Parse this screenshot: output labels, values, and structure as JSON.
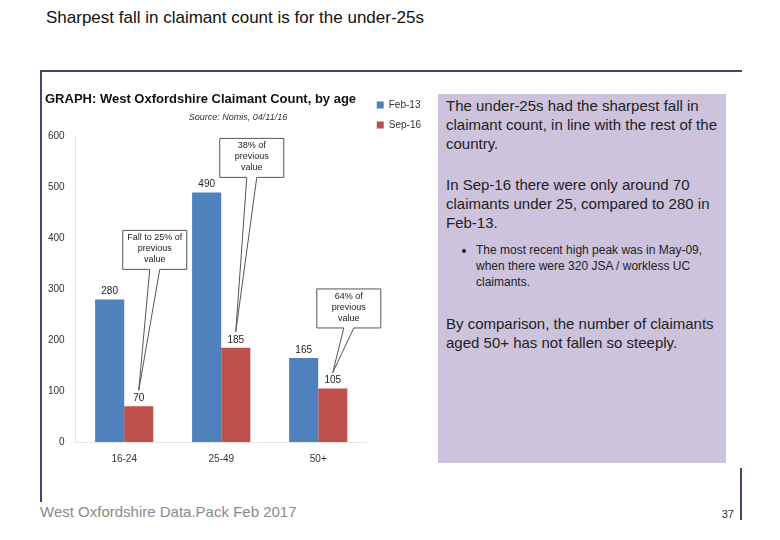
{
  "slide": {
    "title": "Sharpest fall in claimant count is for the under-25s",
    "panel": {
      "paragraphs": [
        "The under-25s had the sharpest fall in claimant count, in line with the rest of the country.",
        "In Sep-16 there were only around 70 claimants under 25, compared to 280 in Feb-13."
      ],
      "bullets": [
        "The most recent high peak was in May-09, when there were 320 JSA / workless UC claimants."
      ],
      "closing": "By comparison, the number of claimants aged 50+ has not fallen so steeply."
    },
    "footer": "West Oxfordshire Data.Pack Feb 2017",
    "page": 37
  },
  "chart_data": {
    "type": "bar",
    "title": "GRAPH: West Oxfordshire Claimant Count, by age",
    "subtitle": "Source: Nomis, 04/11/16",
    "categories": [
      "16-24",
      "25-49",
      "50+"
    ],
    "series": [
      {
        "name": "Feb-13",
        "color": "#4f81bd",
        "values": [
          280,
          490,
          165
        ]
      },
      {
        "name": "Sep-16",
        "color": "#c0504d",
        "values": [
          70,
          185,
          105
        ]
      }
    ],
    "ylim": [
      0,
      600
    ],
    "yticks": [
      0,
      100,
      200,
      300,
      400,
      500,
      600
    ],
    "grid": false,
    "legend": "right",
    "data_labels": true,
    "annotations": [
      {
        "text": "Fall to 25% of previous value",
        "category": "16-24"
      },
      {
        "text": "38% of previous value",
        "category": "25-49"
      },
      {
        "text": "64% of previous value",
        "category": "50+"
      }
    ]
  }
}
